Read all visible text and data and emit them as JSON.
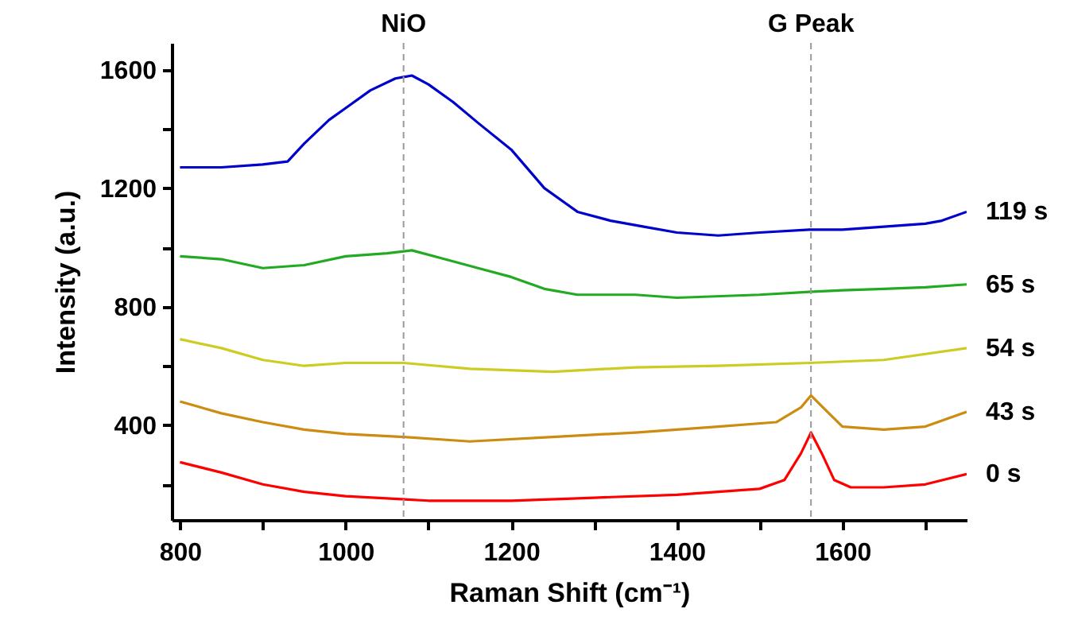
{
  "chart_data": {
    "type": "line",
    "xlabel": "Raman Shift (cm⁻¹)",
    "ylabel": "Intensity (a.u.)",
    "xlim": [
      790,
      1750
    ],
    "xticks": [
      800,
      {
        "value": 900,
        "label": null
      },
      1000,
      {
        "value": 1100,
        "label": null
      },
      1200,
      {
        "value": 1300,
        "label": null
      },
      1400,
      {
        "value": 1500,
        "label": null
      },
      1600,
      {
        "value": 1700,
        "label": null
      }
    ],
    "ylim": [
      80,
      1690
    ],
    "yticks": [
      {
        "value": 200,
        "label": null
      },
      400,
      {
        "value": 600,
        "label": null
      },
      800,
      {
        "value": 1000,
        "label": null
      },
      1200,
      {
        "value": 1400,
        "label": null
      },
      1600
    ],
    "line_style": "solid",
    "ref_lines": [
      {
        "axis": "x",
        "value": 1070,
        "label": "NiO",
        "color": "#999999",
        "line_style": "dashed"
      },
      {
        "axis": "x",
        "value": 1562,
        "label": "G Peak",
        "color": "#999999",
        "line_style": "dashed"
      }
    ],
    "series": [
      {
        "name": "119 s",
        "color": "#0000cc",
        "x": [
          800,
          850,
          900,
          930,
          950,
          980,
          1000,
          1030,
          1060,
          1080,
          1100,
          1130,
          1160,
          1200,
          1240,
          1280,
          1320,
          1360,
          1400,
          1450,
          1500,
          1560,
          1600,
          1650,
          1700,
          1720,
          1750
        ],
        "values": [
          1270,
          1270,
          1280,
          1290,
          1350,
          1430,
          1470,
          1530,
          1570,
          1580,
          1550,
          1490,
          1420,
          1330,
          1200,
          1120,
          1090,
          1070,
          1050,
          1040,
          1050,
          1060,
          1060,
          1070,
          1080,
          1090,
          1120
        ]
      },
      {
        "name": "65 s",
        "color": "#22aa22",
        "x": [
          800,
          850,
          900,
          950,
          1000,
          1050,
          1080,
          1120,
          1160,
          1200,
          1240,
          1280,
          1350,
          1400,
          1500,
          1560,
          1600,
          1650,
          1700,
          1750
        ],
        "values": [
          970,
          960,
          930,
          940,
          970,
          980,
          990,
          960,
          930,
          900,
          860,
          840,
          840,
          830,
          840,
          850,
          855,
          860,
          865,
          875
        ]
      },
      {
        "name": "54 s",
        "color": "#cccc22",
        "x": [
          800,
          850,
          900,
          950,
          1000,
          1070,
          1150,
          1250,
          1350,
          1450,
          1560,
          1650,
          1750
        ],
        "values": [
          690,
          660,
          620,
          600,
          610,
          610,
          590,
          580,
          595,
          600,
          610,
          620,
          660
        ]
      },
      {
        "name": "43 s",
        "color": "#cc8c11",
        "x": [
          800,
          850,
          900,
          950,
          1000,
          1070,
          1150,
          1250,
          1350,
          1450,
          1520,
          1550,
          1562,
          1580,
          1600,
          1650,
          1700,
          1750
        ],
        "values": [
          480,
          440,
          410,
          385,
          370,
          360,
          345,
          360,
          375,
          395,
          410,
          460,
          500,
          450,
          395,
          385,
          395,
          445
        ]
      },
      {
        "name": "0 s",
        "color": "#ff0000",
        "x": [
          800,
          850,
          900,
          950,
          1000,
          1100,
          1200,
          1300,
          1400,
          1500,
          1530,
          1550,
          1562,
          1575,
          1590,
          1610,
          1650,
          1700,
          1750
        ],
        "values": [
          275,
          240,
          200,
          175,
          160,
          145,
          145,
          155,
          165,
          185,
          215,
          305,
          375,
          305,
          215,
          190,
          190,
          200,
          235
        ]
      }
    ]
  }
}
